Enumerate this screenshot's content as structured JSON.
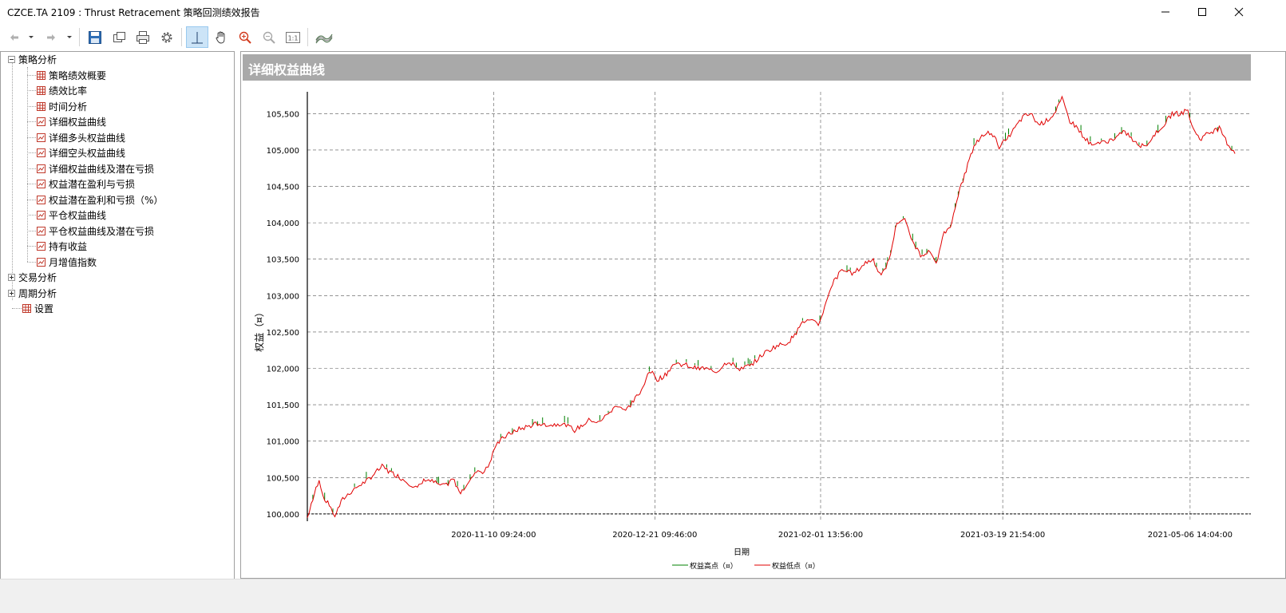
{
  "window": {
    "title": "CZCE.TA 2109 : Thrust Retracement 策略回测绩效报告"
  },
  "toolbar": {
    "buttons": [
      {
        "name": "back-button",
        "icon": "arrow-left-icon"
      },
      {
        "name": "back-dropdown",
        "icon": "chevron-down-icon"
      },
      {
        "name": "forward-button",
        "icon": "arrow-right-icon"
      },
      {
        "name": "forward-dropdown",
        "icon": "chevron-down-icon"
      },
      {
        "name": "save-button",
        "icon": "floppy-disk-icon"
      },
      {
        "name": "copy-button",
        "icon": "copy-icon"
      },
      {
        "name": "print-button",
        "icon": "printer-icon"
      },
      {
        "name": "settings-button",
        "icon": "gear-icon"
      },
      {
        "name": "crosshair-button",
        "icon": "crosshair-icon",
        "active": true
      },
      {
        "name": "pan-button",
        "icon": "hand-icon"
      },
      {
        "name": "zoom-in-button",
        "icon": "zoom-in-icon"
      },
      {
        "name": "zoom-out-button",
        "icon": "zoom-out-icon"
      },
      {
        "name": "actual-size-button",
        "icon": "one-to-one-icon",
        "label": "1:1"
      },
      {
        "name": "chart-style-button",
        "icon": "wave-chart-icon"
      }
    ]
  },
  "tree": {
    "groups": [
      {
        "label": "策略分析",
        "expanded": true,
        "children": [
          {
            "label": "策略绩效概要",
            "icon": "table-icon"
          },
          {
            "label": "绩效比率",
            "icon": "table-icon"
          },
          {
            "label": "时间分析",
            "icon": "table-icon"
          },
          {
            "label": "详细权益曲线",
            "icon": "chart-icon",
            "selected": true
          },
          {
            "label": "详细多头权益曲线",
            "icon": "chart-icon"
          },
          {
            "label": "详细空头权益曲线",
            "icon": "chart-icon"
          },
          {
            "label": "详细权益曲线及潜在亏损",
            "icon": "chart-icon"
          },
          {
            "label": "权益潜在盈利与亏损",
            "icon": "chart-icon"
          },
          {
            "label": "权益潜在盈利和亏损（%）",
            "icon": "chart-icon"
          },
          {
            "label": "平仓权益曲线",
            "icon": "chart-icon"
          },
          {
            "label": "平仓权益曲线及潜在亏损",
            "icon": "chart-icon"
          },
          {
            "label": "持有收益",
            "icon": "chart-icon"
          },
          {
            "label": "月增值指数",
            "icon": "chart-icon"
          }
        ]
      },
      {
        "label": "交易分析",
        "expanded": false
      },
      {
        "label": "周期分析",
        "expanded": false
      },
      {
        "label": "设置",
        "leaf": true,
        "icon": "table-icon"
      }
    ]
  },
  "panel": {
    "header": "详细权益曲线"
  },
  "chart_data": {
    "type": "line",
    "title": "",
    "xlabel": "日期",
    "ylabel": "权益（¤）",
    "ylim": [
      99900,
      105800
    ],
    "yticks": [
      100000,
      100500,
      101000,
      101500,
      102000,
      102500,
      103000,
      103500,
      104000,
      104500,
      105000,
      105500
    ],
    "ytick_labels": [
      "100,000",
      "100,500",
      "101,000",
      "101,500",
      "102,000",
      "102,500",
      "103,000",
      "103,500",
      "104,000",
      "104,500",
      "105,000",
      "105,500"
    ],
    "xtick_labels": [
      "2020-11-10 09:24:00",
      "2020-12-21 09:46:00",
      "2021-02-01 13:56:00",
      "2021-03-19 21:54:00",
      "2021-05-06 14:04:00"
    ],
    "baseline": 100000,
    "grid": true,
    "legend_position": "bottom",
    "series": [
      {
        "name": "权益高点（¤）",
        "color": "#008000"
      },
      {
        "name": "权益低点（¤）",
        "color": "#e00000"
      }
    ],
    "points": [
      [
        "2020-09-24",
        99950
      ],
      [
        "2020-09-25",
        100150
      ],
      [
        "2020-09-27",
        100480
      ],
      [
        "2020-09-28",
        100250
      ],
      [
        "2020-09-30",
        100080
      ],
      [
        "2020-10-01",
        99980
      ],
      [
        "2020-10-03",
        100200
      ],
      [
        "2020-10-06",
        100350
      ],
      [
        "2020-10-09",
        100450
      ],
      [
        "2020-10-11",
        100550
      ],
      [
        "2020-10-13",
        100650
      ],
      [
        "2020-10-15",
        100580
      ],
      [
        "2020-10-17",
        100520
      ],
      [
        "2020-10-20",
        100420
      ],
      [
        "2020-10-22",
        100350
      ],
      [
        "2020-10-24",
        100480
      ],
      [
        "2020-10-27",
        100420
      ],
      [
        "2020-10-29",
        100380
      ],
      [
        "2020-10-31",
        100480
      ],
      [
        "2020-11-02",
        100300
      ],
      [
        "2020-11-04",
        100450
      ],
      [
        "2020-11-06",
        100600
      ],
      [
        "2020-11-08",
        100580
      ],
      [
        "2020-11-09",
        100650
      ],
      [
        "2020-11-11",
        100950
      ],
      [
        "2020-11-13",
        101050
      ],
      [
        "2020-11-16",
        101150
      ],
      [
        "2020-11-19",
        101200
      ],
      [
        "2020-11-22",
        101250
      ],
      [
        "2020-11-25",
        101220
      ],
      [
        "2020-11-28",
        101250
      ],
      [
        "2020-12-01",
        101150
      ],
      [
        "2020-12-03",
        101220
      ],
      [
        "2020-12-05",
        101300
      ],
      [
        "2020-12-07",
        101250
      ],
      [
        "2020-12-10",
        101400
      ],
      [
        "2020-12-12",
        101500
      ],
      [
        "2020-12-14",
        101420
      ],
      [
        "2020-12-16",
        101550
      ],
      [
        "2020-12-18",
        101700
      ],
      [
        "2020-12-20",
        101980
      ],
      [
        "2020-12-22",
        101850
      ],
      [
        "2020-12-24",
        101900
      ],
      [
        "2020-12-26",
        102050
      ],
      [
        "2020-12-29",
        102050
      ],
      [
        "2021-01-01",
        102000
      ],
      [
        "2021-01-03",
        102000
      ],
      [
        "2021-01-06",
        101950
      ],
      [
        "2021-01-09",
        102100
      ],
      [
        "2021-01-12",
        102000
      ],
      [
        "2021-01-15",
        102050
      ],
      [
        "2021-01-18",
        102200
      ],
      [
        "2021-01-21",
        102300
      ],
      [
        "2021-01-24",
        102350
      ],
      [
        "2021-01-26",
        102450
      ],
      [
        "2021-01-28",
        102650
      ],
      [
        "2021-01-30",
        102650
      ],
      [
        "2021-02-01",
        102600
      ],
      [
        "2021-02-03",
        102900
      ],
      [
        "2021-02-05",
        103200
      ],
      [
        "2021-02-07",
        103350
      ],
      [
        "2021-02-10",
        103300
      ],
      [
        "2021-02-13",
        103450
      ],
      [
        "2021-02-15",
        103500
      ],
      [
        "2021-02-17",
        103250
      ],
      [
        "2021-02-19",
        103500
      ],
      [
        "2021-02-21",
        104000
      ],
      [
        "2021-02-23",
        104050
      ],
      [
        "2021-02-25",
        103750
      ],
      [
        "2021-02-27",
        103550
      ],
      [
        "2021-03-01",
        103600
      ],
      [
        "2021-03-03",
        103450
      ],
      [
        "2021-03-05",
        103850
      ],
      [
        "2021-03-07",
        104000
      ],
      [
        "2021-03-09",
        104450
      ],
      [
        "2021-03-11",
        104800
      ],
      [
        "2021-03-13",
        105100
      ],
      [
        "2021-03-15",
        105200
      ],
      [
        "2021-03-17",
        105250
      ],
      [
        "2021-03-19",
        105050
      ],
      [
        "2021-03-21",
        105150
      ],
      [
        "2021-03-23",
        105300
      ],
      [
        "2021-03-25",
        105450
      ],
      [
        "2021-03-27",
        105500
      ],
      [
        "2021-03-29",
        105350
      ],
      [
        "2021-03-31",
        105400
      ],
      [
        "2021-04-02",
        105500
      ],
      [
        "2021-04-04",
        105700
      ],
      [
        "2021-04-06",
        105400
      ],
      [
        "2021-04-08",
        105300
      ],
      [
        "2021-04-10",
        105150
      ],
      [
        "2021-04-12",
        105050
      ],
      [
        "2021-04-14",
        105100
      ],
      [
        "2021-04-17",
        105150
      ],
      [
        "2021-04-20",
        105250
      ],
      [
        "2021-04-22",
        105150
      ],
      [
        "2021-04-24",
        105050
      ],
      [
        "2021-04-26",
        105100
      ],
      [
        "2021-04-28",
        105250
      ],
      [
        "2021-04-30",
        105350
      ],
      [
        "2021-05-02",
        105500
      ],
      [
        "2021-05-04",
        105500
      ],
      [
        "2021-05-06",
        105550
      ],
      [
        "2021-05-07",
        105350
      ],
      [
        "2021-05-09",
        105150
      ],
      [
        "2021-05-12",
        105250
      ],
      [
        "2021-05-14",
        105300
      ],
      [
        "2021-05-16",
        105100
      ],
      [
        "2021-05-18",
        104950
      ]
    ]
  }
}
